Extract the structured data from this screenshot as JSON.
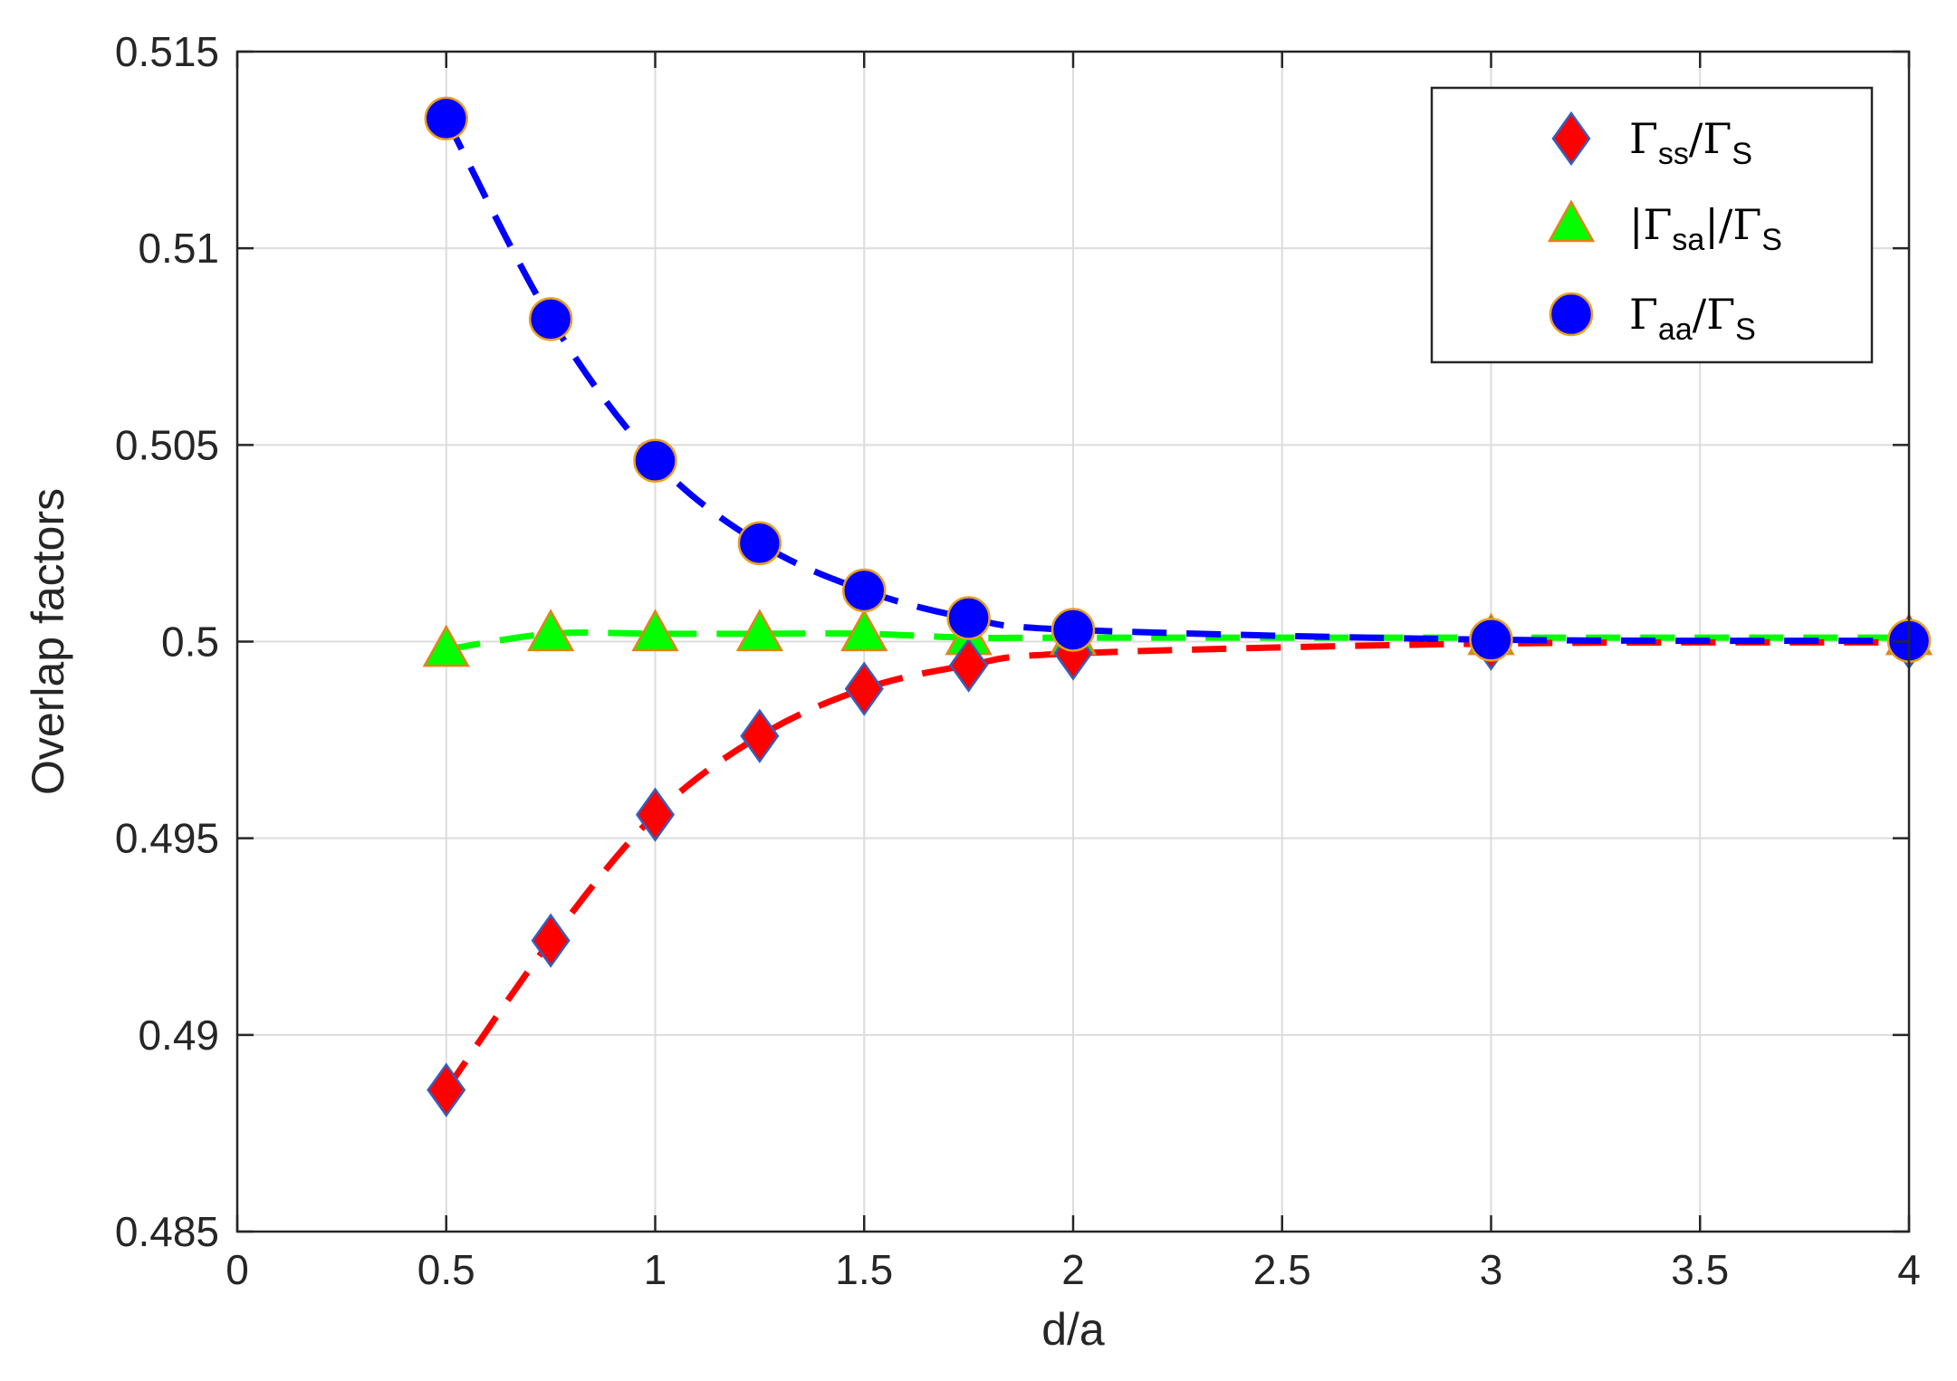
{
  "chart_data": {
    "type": "scatter",
    "title": "",
    "xlabel": "d/a",
    "ylabel": "Overlap factors",
    "xlim": [
      0,
      4
    ],
    "ylim": [
      0.485,
      0.515
    ],
    "xticks": [
      0,
      0.5,
      1,
      1.5,
      2,
      2.5,
      3,
      3.5,
      4
    ],
    "xtick_labels": [
      "0",
      "0.5",
      "1",
      "1.5",
      "2",
      "2.5",
      "3",
      "3.5",
      "4"
    ],
    "yticks": [
      0.485,
      0.49,
      0.495,
      0.5,
      0.505,
      0.51,
      0.515
    ],
    "ytick_labels": [
      "0.485",
      "0.49",
      "0.495",
      "0.5",
      "0.505",
      "0.51",
      "0.515"
    ],
    "grid": true,
    "legend_position": "top-right",
    "series": [
      {
        "key": "ss",
        "legend": {
          "pre": "",
          "base": "Γ",
          "sub": "ss",
          "mid": "/Γ",
          "sub2": "S"
        },
        "marker": "diamond",
        "color": "#ff0000",
        "edge_color": "#3060c0",
        "line_style": "dashed",
        "x": [
          0.5,
          0.75,
          1,
          1.25,
          1.5,
          1.75,
          2,
          3,
          4
        ],
        "y": [
          0.4886,
          0.4924,
          0.4956,
          0.4976,
          0.4988,
          0.4994,
          0.4997,
          0.49995,
          0.49998
        ]
      },
      {
        "key": "sa",
        "legend": {
          "pre": "|",
          "base": "Γ",
          "sub": "sa",
          "mid": "|/Γ",
          "sub2": "S"
        },
        "marker": "triangle",
        "color": "#00ff00",
        "edge_color": "#e8801a",
        "line_style": "dashed",
        "x": [
          0.5,
          0.75,
          1,
          1.25,
          1.5,
          1.75,
          2,
          3,
          4
        ],
        "y": [
          0.4998,
          0.5002,
          0.5002,
          0.5002,
          0.5002,
          0.5001,
          0.5001,
          0.5001,
          0.5001
        ]
      },
      {
        "key": "aa",
        "legend": {
          "pre": "",
          "base": "Γ",
          "sub": "aa",
          "mid": "/Γ",
          "sub2": "S"
        },
        "marker": "circle",
        "color": "#0000ff",
        "edge_color": "#e8a020",
        "line_style": "dashed",
        "x": [
          0.5,
          0.75,
          1,
          1.25,
          1.5,
          1.75,
          2,
          3,
          4
        ],
        "y": [
          0.5133,
          0.5082,
          0.5046,
          0.5025,
          0.5013,
          0.5006,
          0.5003,
          0.50005,
          0.50002
        ]
      }
    ]
  }
}
